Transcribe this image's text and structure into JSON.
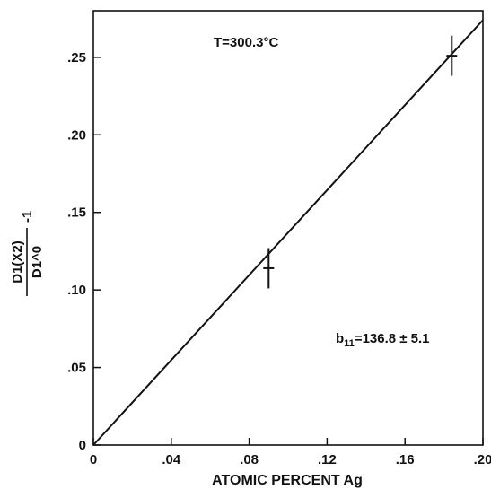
{
  "chart_data": {
    "type": "line",
    "xlabel": "ATOMIC PERCENT Ag",
    "ylabel": {
      "numerator": "D1(X2)",
      "denominator": "D1^0",
      "suffix": "-1"
    },
    "xlim": [
      0,
      0.2
    ],
    "ylim": [
      0,
      0.28
    ],
    "x_ticks": [
      "0",
      ".04",
      ".08",
      ".12",
      ".16",
      ".20"
    ],
    "y_ticks": [
      "0",
      ".05",
      ".10",
      ".15",
      ".20",
      ".25"
    ],
    "fit_line": {
      "x": [
        0,
        0.2
      ],
      "y": [
        0,
        0.274
      ]
    },
    "points": [
      {
        "x": 0.09,
        "y": 0.114,
        "err": 0.013
      },
      {
        "x": 0.184,
        "y": 0.251,
        "err": 0.013
      }
    ],
    "annotations": [
      {
        "text": "T=300.3°C"
      },
      {
        "text": "b11 = 136.8 ± 5.1",
        "main": "b",
        "sub": "11",
        "rest": "=136.8 ± 5.1"
      }
    ],
    "grid": false
  }
}
